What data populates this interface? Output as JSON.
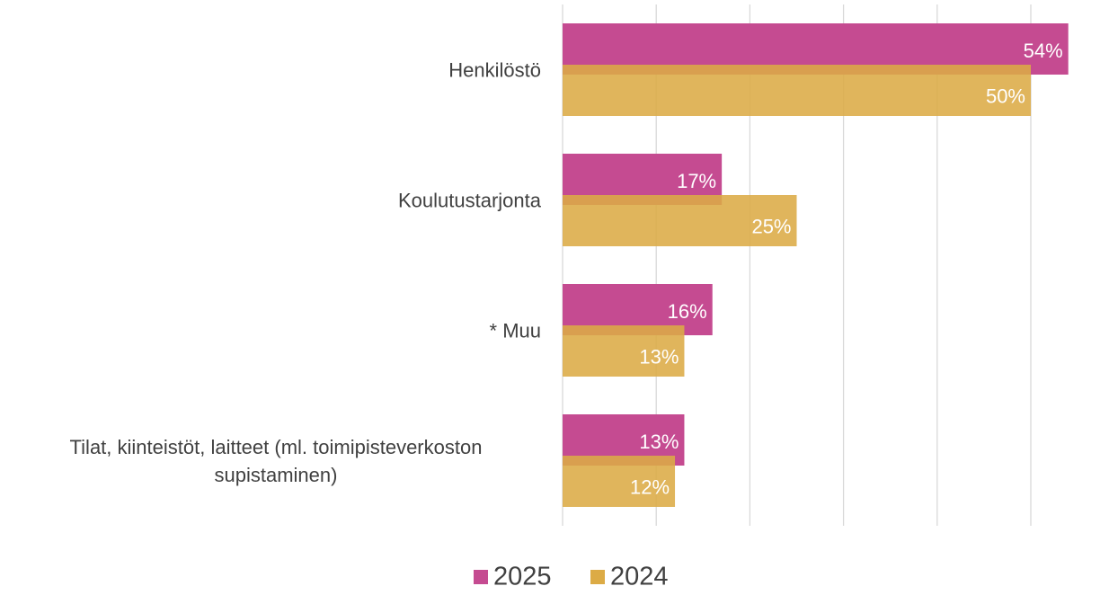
{
  "chart_data": {
    "type": "bar",
    "orientation": "horizontal",
    "categories": [
      "Henkilöstö",
      "Koulutustarjonta",
      "* Muu",
      "Tilat, kiinteistöt, laitteet (ml. toimipisteverkoston supistaminen)"
    ],
    "series": [
      {
        "name": "2025",
        "color": "#c54b91",
        "values": [
          54,
          17,
          16,
          13
        ],
        "value_labels": [
          "54%",
          "17%",
          "16%",
          "13%"
        ]
      },
      {
        "name": "2024",
        "color": "#dcab45",
        "values": [
          50,
          25,
          13,
          12
        ],
        "value_labels": [
          "50%",
          "25%",
          "13%",
          "12%"
        ]
      }
    ],
    "xlim": [
      0,
      50
    ],
    "xticks": [
      0,
      10,
      20,
      30,
      40,
      50
    ],
    "grid": true,
    "legend": "bottom"
  }
}
